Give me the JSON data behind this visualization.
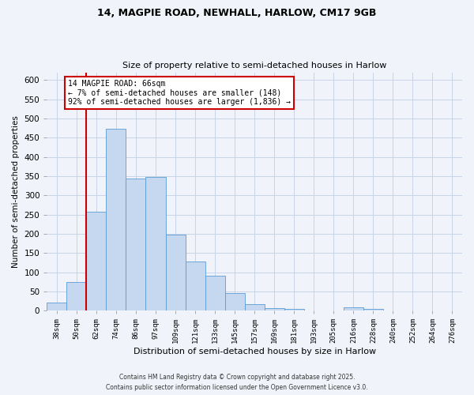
{
  "title1": "14, MAGPIE ROAD, NEWHALL, HARLOW, CM17 9GB",
  "title2": "Size of property relative to semi-detached houses in Harlow",
  "xlabel": "Distribution of semi-detached houses by size in Harlow",
  "ylabel": "Number of semi-detached properties",
  "bin_labels": [
    "38sqm",
    "50sqm",
    "62sqm",
    "74sqm",
    "86sqm",
    "97sqm",
    "109sqm",
    "121sqm",
    "133sqm",
    "145sqm",
    "157sqm",
    "169sqm",
    "181sqm",
    "193sqm",
    "205sqm",
    "216sqm",
    "228sqm",
    "240sqm",
    "252sqm",
    "264sqm",
    "276sqm"
  ],
  "bar_values": [
    20,
    75,
    257,
    473,
    343,
    347,
    198,
    127,
    90,
    46,
    17,
    7,
    5,
    0,
    0,
    8,
    4,
    0,
    0,
    0,
    1
  ],
  "bar_color": "#c5d8f0",
  "bar_edge_color": "#5b9bd5",
  "annotation_title": "14 MAGPIE ROAD: 66sqm",
  "annotation_line1": "← 7% of semi-detached houses are smaller (148)",
  "annotation_line2": "92% of semi-detached houses are larger (1,836) →",
  "annotation_box_color": "#ffffff",
  "annotation_box_edge": "#cc0000",
  "vline_color": "#cc0000",
  "ylim": [
    0,
    620
  ],
  "yticks": [
    0,
    50,
    100,
    150,
    200,
    250,
    300,
    350,
    400,
    450,
    500,
    550,
    600
  ],
  "footer1": "Contains HM Land Registry data © Crown copyright and database right 2025.",
  "footer2": "Contains public sector information licensed under the Open Government Licence v3.0.",
  "bg_color": "#f0f4fa",
  "grid_color": "#c8d4e8"
}
